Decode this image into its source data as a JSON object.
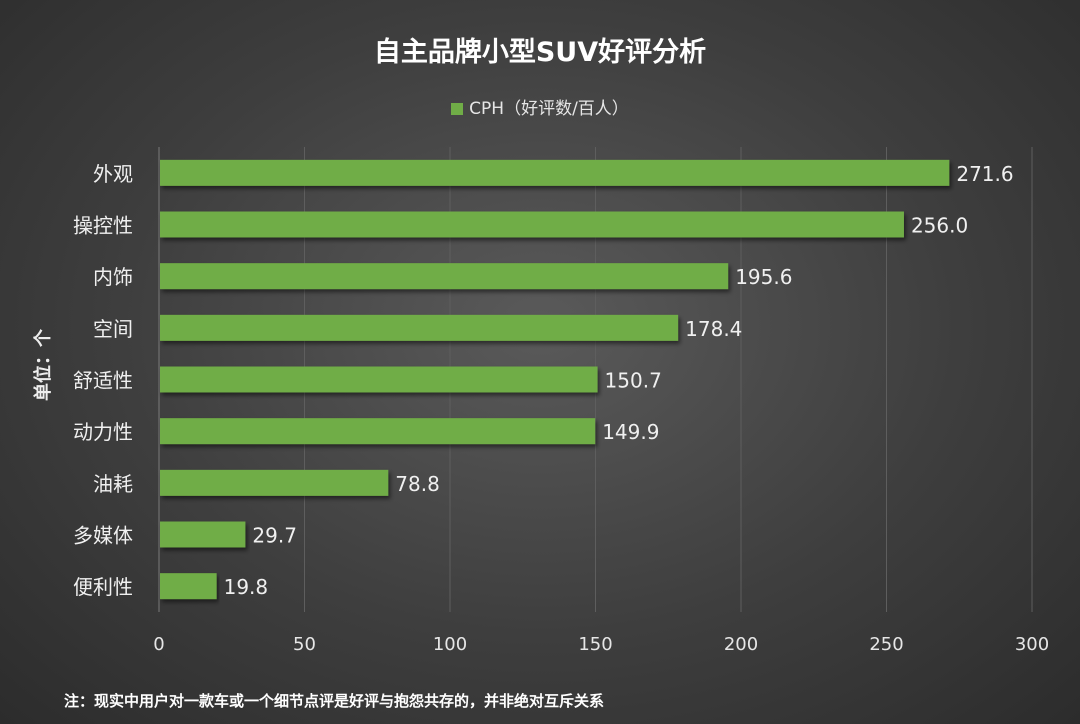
{
  "chart_data": {
    "type": "bar",
    "orientation": "horizontal",
    "title": "自主品牌小型SUV好评分析",
    "legend": [
      "CPH（好评数/百人）"
    ],
    "legend_position": "top",
    "ylabel": "单位：个",
    "xlabel": "",
    "categories": [
      "外观",
      "操控性",
      "内饰",
      "空间",
      "舒适性",
      "动力性",
      "油耗",
      "多媒体",
      "便利性"
    ],
    "values": [
      271.6,
      256.0,
      195.6,
      178.4,
      150.7,
      149.9,
      78.8,
      29.7,
      19.8
    ],
    "value_labels": [
      "271.6",
      "256.0",
      "195.6",
      "178.4",
      "150.7",
      "149.9",
      "78.8",
      "29.7",
      "19.8"
    ],
    "xlim": [
      0,
      300
    ],
    "xticks": [
      "0",
      "50",
      "100",
      "150",
      "200",
      "250",
      "300"
    ],
    "grid": true,
    "bar_color": "#70ad47",
    "note": "注：现实中用户对一款车或一个细节点评是好评与抱怨共存的，并非绝对互斥关系"
  }
}
